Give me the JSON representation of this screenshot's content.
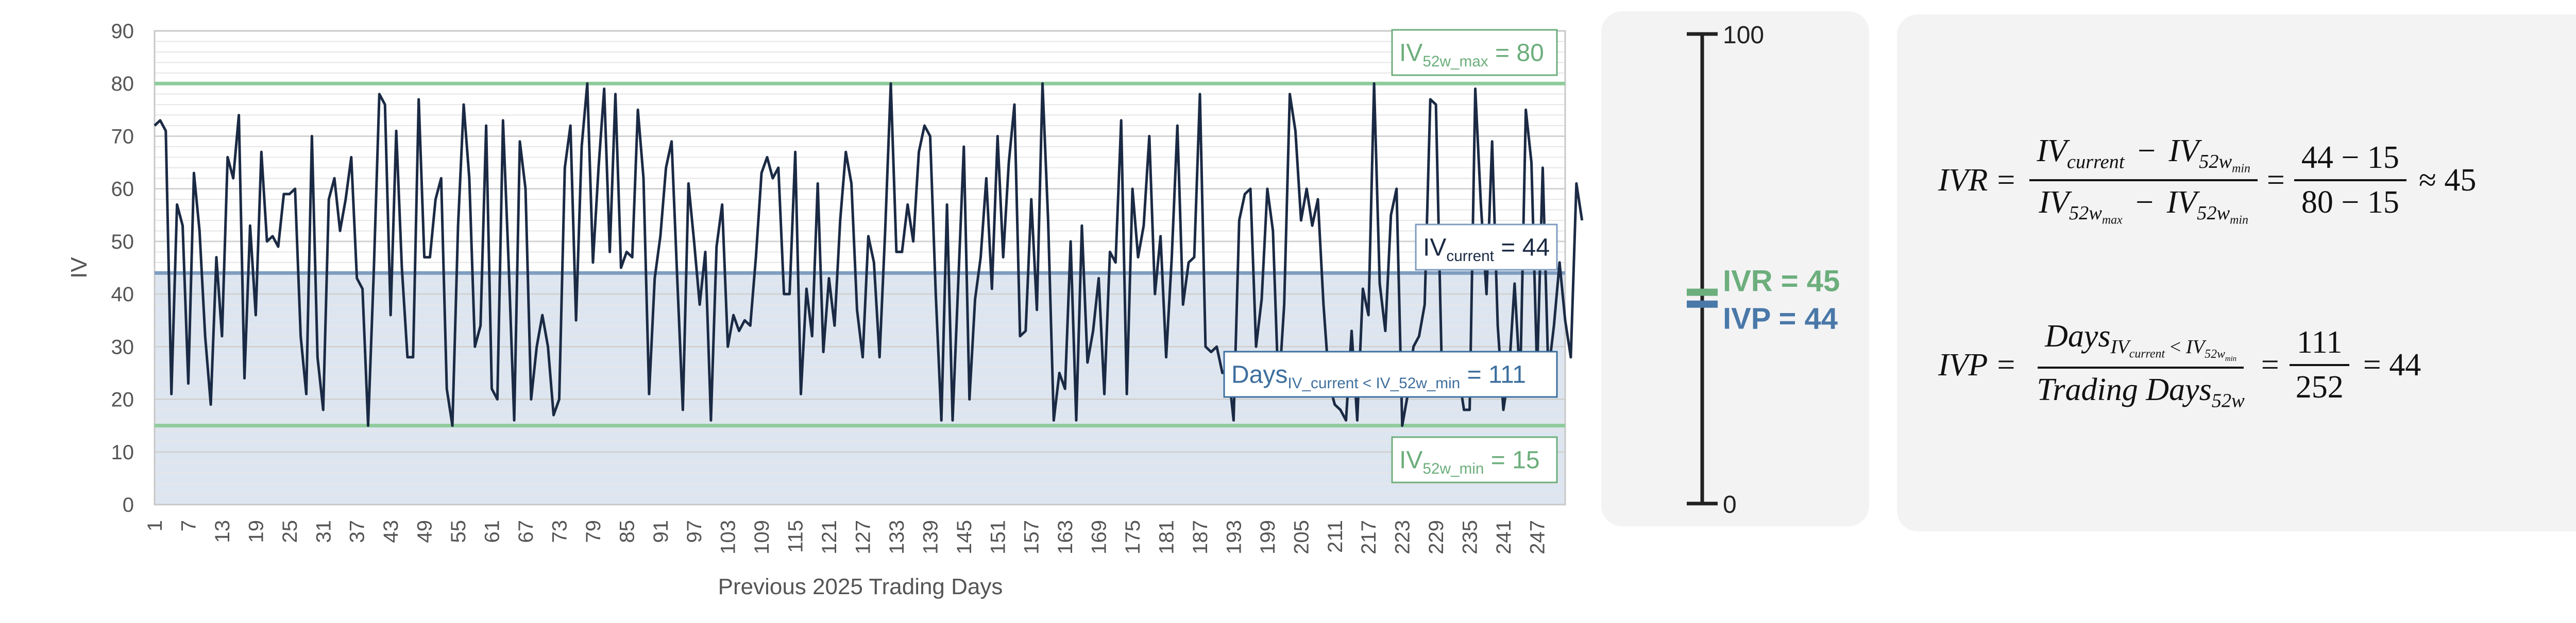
{
  "chart_data": {
    "type": "line",
    "xlabel": "Previous 2025 Trading Days",
    "ylabel": "IV",
    "ylim": [
      0,
      90
    ],
    "xlim": [
      1,
      252
    ],
    "y_ticks": [
      0,
      10,
      20,
      30,
      40,
      50,
      60,
      70,
      80,
      90
    ],
    "x_ticks": [
      1,
      7,
      13,
      19,
      25,
      31,
      37,
      43,
      49,
      55,
      61,
      67,
      73,
      79,
      85,
      91,
      97,
      103,
      109,
      115,
      121,
      127,
      133,
      139,
      145,
      151,
      157,
      163,
      169,
      175,
      181,
      187,
      193,
      199,
      205,
      211,
      217,
      223,
      229,
      235,
      241,
      247
    ],
    "grid": "horizontal",
    "series": [
      {
        "values": [
          72,
          73,
          71,
          21,
          57,
          53,
          23,
          63,
          52,
          32,
          19,
          47,
          32,
          66,
          62,
          74,
          24,
          53,
          36,
          67,
          50,
          51,
          49,
          59,
          59,
          60,
          32,
          21,
          70,
          28,
          18,
          58,
          62,
          52,
          58,
          66,
          43,
          41,
          15,
          44,
          78,
          76,
          36,
          71,
          45,
          28,
          28,
          77,
          47,
          47,
          58,
          62,
          22,
          15,
          53,
          76,
          62,
          30,
          34,
          72,
          22,
          20,
          73,
          46,
          16,
          69,
          60,
          20,
          30,
          36,
          30,
          17,
          20,
          64,
          72,
          35,
          68,
          80,
          46,
          64,
          79,
          48,
          78,
          45,
          48,
          47,
          75,
          62,
          21,
          43,
          51,
          64,
          69,
          43,
          18,
          61,
          50,
          38,
          48,
          16,
          49,
          57,
          30,
          36,
          33,
          35,
          34,
          47,
          63,
          66,
          62,
          64,
          40,
          40,
          67,
          21,
          41,
          32,
          61,
          29,
          43,
          34,
          54,
          67,
          61,
          37,
          28,
          51,
          46,
          28,
          52,
          80,
          48,
          48,
          57,
          50,
          67,
          72,
          70,
          40,
          16,
          57,
          16,
          42,
          68,
          20,
          39,
          47,
          62,
          41,
          70,
          47,
          65,
          76,
          32,
          33,
          58,
          37,
          80,
          54,
          16,
          25,
          22,
          50,
          16,
          53,
          27,
          33,
          43,
          21,
          48,
          46,
          73,
          21,
          60,
          47,
          53,
          70,
          40,
          51,
          28,
          47,
          72,
          38,
          46,
          47,
          78,
          30,
          29,
          30,
          25,
          26,
          16,
          54,
          59,
          60,
          30,
          39,
          60,
          52,
          21,
          38,
          78,
          71,
          54,
          60,
          53,
          58,
          38,
          23,
          19,
          18,
          16,
          33,
          16,
          41,
          36,
          80,
          42,
          33,
          55,
          60,
          15,
          21,
          30,
          32,
          38,
          77,
          76,
          28,
          25,
          23,
          25,
          18,
          18,
          79,
          57,
          40,
          69,
          34,
          18,
          25,
          42,
          23,
          75,
          65,
          25,
          64,
          25,
          34,
          46,
          35,
          28,
          61,
          54
        ]
      }
    ],
    "reference_lines": [
      {
        "name": "IV52w_max",
        "value": 80,
        "color": "#8fcb9b"
      },
      {
        "name": "IV52w_min",
        "value": 15,
        "color": "#8fcb9b"
      },
      {
        "name": "IVcurrent",
        "value": 44,
        "color": "#7f9dc0"
      }
    ],
    "annotations": {
      "max": {
        "main": "IV",
        "sub": "52w_max",
        "tail": "= 80",
        "color": "#6cae7c"
      },
      "current": {
        "main": "IV",
        "sub": "current",
        "tail": "= 44",
        "color": "#1b2a44"
      },
      "days": {
        "main": "Days",
        "sub": "IV_current < IV_52w_min",
        "tail": "= 111",
        "color": "#3e6f9e"
      },
      "min": {
        "main": "IV",
        "sub": "52w_min",
        "tail": "= 15",
        "color": "#6cae7c"
      }
    },
    "line_color": "#1b2a44",
    "shade_color": "#dde6f0"
  },
  "gauge": {
    "max_label": "100",
    "min_label": "0",
    "max": 100,
    "min": 0,
    "ivr_value": 45,
    "ivp_value": 44,
    "ivr_label": "IVR = 45",
    "ivp_label": "IVP = 44",
    "ivr_color": "#6cae7c",
    "ivp_color": "#4a78a8"
  },
  "formulas": {
    "ivr": {
      "lhs": "IVR",
      "num_a": "IV",
      "num_a_sub": "current",
      "num_op": "−",
      "num_b": "IV",
      "num_b_sub": "52w",
      "num_b_subsub": "min",
      "den_a": "IV",
      "den_a_sub": "52w",
      "den_a_subsub": "max",
      "den_op": "−",
      "den_b": "IV",
      "den_b_sub": "52w",
      "den_b_subsub": "min",
      "num_vals": "44 − 15",
      "den_vals": "80 − 15",
      "result": "≈ 45"
    },
    "ivp": {
      "lhs": "IVP",
      "num_a": "Days",
      "num_a_sub": "IV",
      "num_a_subsub": "current",
      "num_lt": "<",
      "num_b_sub": "IV",
      "num_b_subsub": "52w",
      "num_b_subsubsub": "min",
      "den": "Trading Days",
      "den_sub": "52w",
      "num_vals": "111",
      "den_vals": "252",
      "result": "= 44"
    }
  }
}
